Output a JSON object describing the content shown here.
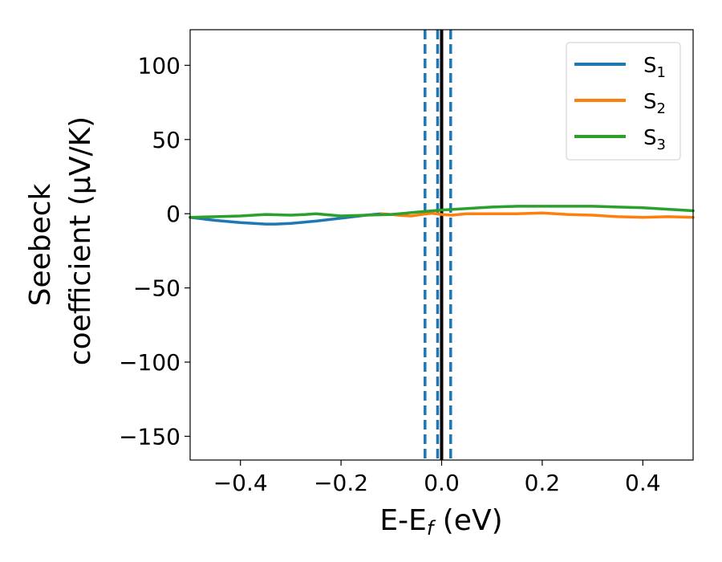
{
  "chart_data": {
    "type": "line",
    "xlabel": "E-E",
    "xlabel_sub": "f",
    "xlabel_unit": " (eV)",
    "ylabel_line1": "Seebeck",
    "ylabel_line2": "coefficient  (μV/K)",
    "xlim": [
      -0.5,
      0.5
    ],
    "ylim": [
      -166,
      124
    ],
    "xticks": [
      -0.4,
      -0.2,
      0.0,
      0.2,
      0.4
    ],
    "xtick_labels": [
      "−0.4",
      "−0.2",
      "0.0",
      "0.2",
      "0.4"
    ],
    "yticks": [
      100,
      50,
      0,
      -50,
      -100,
      -150
    ],
    "ytick_labels": [
      "100",
      "50",
      "0",
      "−50",
      "−100",
      "−150"
    ],
    "grid": false,
    "legend_position": "top-right",
    "series": [
      {
        "name": "S",
        "name_sub": "1",
        "color": "#1f77b4",
        "x": [
          -0.5,
          -0.45,
          -0.4,
          -0.35,
          -0.33,
          -0.3,
          -0.25,
          -0.2,
          -0.15,
          -0.12
        ],
        "y": [
          -2.5,
          -4.5,
          -6,
          -7,
          -7,
          -6.5,
          -5,
          -3,
          -1,
          0
        ]
      },
      {
        "name": "S",
        "name_sub": "2",
        "color": "#ff7f0e",
        "x": [
          -0.12,
          -0.1,
          -0.08,
          -0.06,
          -0.04,
          -0.02,
          0.0,
          0.02,
          0.05,
          0.1,
          0.15,
          0.2,
          0.25,
          0.3,
          0.35,
          0.4,
          0.45,
          0.5
        ],
        "y": [
          0,
          -0.5,
          -1.2,
          -1.5,
          -0.5,
          0.3,
          -0.5,
          -1,
          0,
          0,
          0,
          0.5,
          -0.5,
          -1,
          -2,
          -2.5,
          -2,
          -2.5
        ]
      },
      {
        "name": "S",
        "name_sub": "3",
        "color": "#2ca02c",
        "x": [
          -0.5,
          -0.45,
          -0.4,
          -0.35,
          -0.3,
          -0.27,
          -0.25,
          -0.2,
          -0.15,
          -0.1,
          -0.05,
          0.0,
          0.05,
          0.1,
          0.15,
          0.2,
          0.25,
          0.3,
          0.35,
          0.4,
          0.45,
          0.5
        ],
        "y": [
          -2.5,
          -2,
          -1.5,
          -0.5,
          -1,
          -0.5,
          0,
          -1.5,
          -1,
          -0.5,
          1,
          2.5,
          3.5,
          4.5,
          5,
          5,
          5,
          5,
          4.5,
          4,
          3,
          2
        ]
      }
    ],
    "vlines": [
      {
        "x": -0.033,
        "style": "dashed",
        "color": "#1f77b4"
      },
      {
        "x": -0.008,
        "style": "dashed",
        "color": "#1f77b4"
      },
      {
        "x": 0.018,
        "style": "dashed",
        "color": "#1f77b4"
      },
      {
        "x": 0.0,
        "style": "solid",
        "color": "#000000"
      }
    ]
  }
}
